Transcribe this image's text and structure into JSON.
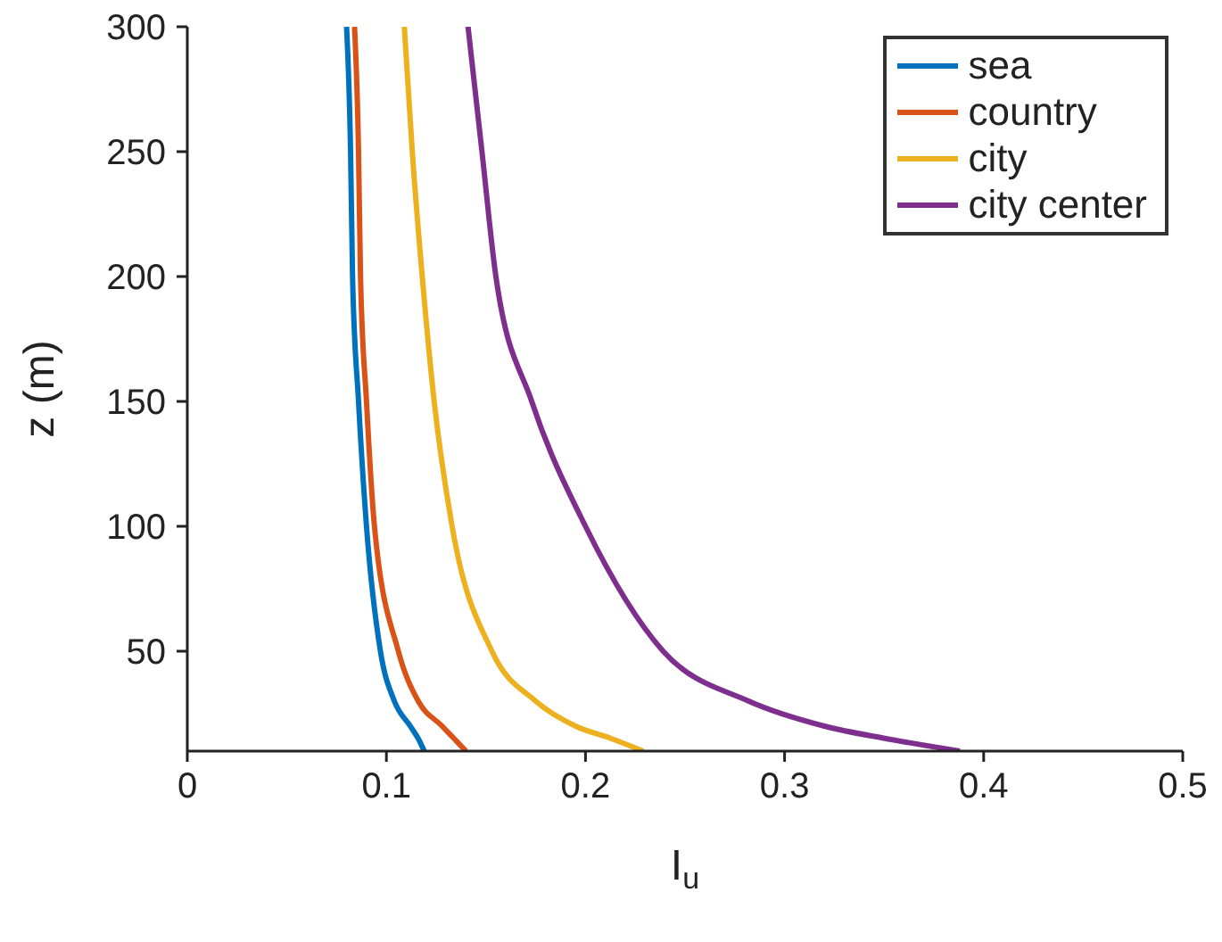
{
  "chart_data": {
    "type": "line",
    "xlabel": "I$_{u}$",
    "ylabel": "z (m)",
    "xlim": [
      0,
      0.5
    ],
    "xticks": [
      0,
      0.1,
      0.2,
      0.3,
      0.4,
      0.5
    ],
    "ylim": [
      10,
      300
    ],
    "yticks": [
      50,
      100,
      150,
      200,
      250,
      300
    ],
    "legend": "top right",
    "grid": false,
    "marker": "none",
    "line_style": "solid",
    "series": [
      {
        "name": "sea",
        "color": "#0072bd",
        "x": [
          0.119,
          0.116,
          0.112,
          0.104,
          0.097,
          0.09,
          0.086,
          0.083,
          0.082,
          0.08
        ],
        "values": [
          10,
          15,
          20,
          30,
          50,
          100,
          150,
          200,
          250,
          300
        ]
      },
      {
        "name": "country",
        "color": "#d95319",
        "x": [
          0.14,
          0.134,
          0.128,
          0.116,
          0.106,
          0.094,
          0.09,
          0.087,
          0.086,
          0.084
        ],
        "values": [
          10,
          15,
          20,
          30,
          50,
          100,
          150,
          200,
          250,
          300
        ]
      },
      {
        "name": "city",
        "color": "#edb120",
        "x": [
          0.229,
          0.213,
          0.195,
          0.175,
          0.153,
          0.133,
          0.124,
          0.118,
          0.113,
          0.109
        ],
        "values": [
          10,
          15,
          20,
          30,
          50,
          100,
          150,
          200,
          250,
          300
        ]
      },
      {
        "name": "city center",
        "color": "#7e2f8e",
        "x": [
          0.388,
          0.351,
          0.32,
          0.282,
          0.239,
          0.2,
          0.173,
          0.155,
          0.148,
          0.141
        ],
        "values": [
          10,
          15,
          20,
          30,
          50,
          100,
          150,
          200,
          250,
          300
        ]
      }
    ]
  }
}
